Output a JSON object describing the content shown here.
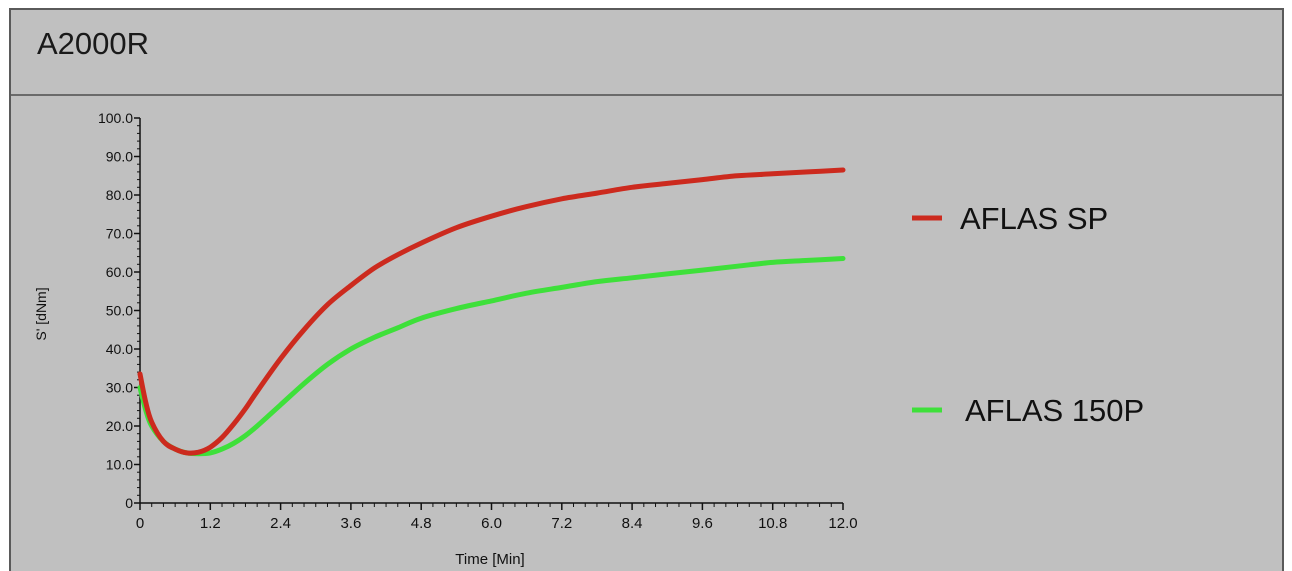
{
  "panel": {
    "title": "A2000R"
  },
  "chart_data": {
    "type": "line",
    "title": "A2000R",
    "xlabel": "Time [Min]",
    "ylabel": "S' [dNm]",
    "xlim": [
      0,
      12
    ],
    "ylim": [
      0,
      100
    ],
    "xticks": [
      "0",
      "1.2",
      "2.4",
      "3.6",
      "4.8",
      "6.0",
      "7.2",
      "8.4",
      "9.6",
      "10.8",
      "12.0"
    ],
    "yticks": [
      "0",
      "10.0",
      "20.0",
      "30.0",
      "40.0",
      "50.0",
      "60.0",
      "70.0",
      "80.0",
      "90.0",
      "100.0"
    ],
    "grid": false,
    "legend": "right",
    "series": [
      {
        "name": "AFLAS SP",
        "color": "#cc2a1e",
        "x": [
          0,
          0.1,
          0.2,
          0.4,
          0.6,
          0.8,
          1.0,
          1.2,
          1.4,
          1.6,
          1.8,
          2.0,
          2.4,
          2.8,
          3.2,
          3.6,
          4.0,
          4.4,
          4.8,
          5.4,
          6.0,
          6.6,
          7.2,
          7.8,
          8.4,
          9.0,
          9.6,
          10.2,
          10.8,
          11.4,
          12.0
        ],
        "y": [
          33.5,
          26,
          21,
          16,
          14,
          13,
          13.2,
          14.5,
          17,
          20.5,
          24.5,
          29,
          37.5,
          45,
          51.5,
          56.5,
          61,
          64.5,
          67.5,
          71.5,
          74.5,
          77,
          79,
          80.5,
          82,
          83,
          84,
          85,
          85.5,
          86,
          86.5
        ]
      },
      {
        "name": "AFLAS 150P",
        "color": "#3ee03a",
        "x": [
          0,
          0.1,
          0.2,
          0.4,
          0.6,
          0.8,
          1.0,
          1.2,
          1.4,
          1.6,
          1.8,
          2.0,
          2.4,
          2.8,
          3.2,
          3.6,
          4.0,
          4.4,
          4.8,
          5.4,
          6.0,
          6.6,
          7.2,
          7.8,
          8.4,
          9.0,
          9.6,
          10.2,
          10.8,
          11.4,
          12.0
        ],
        "y": [
          30,
          24,
          20,
          16,
          14,
          13,
          12.8,
          13,
          14,
          15.5,
          17.5,
          20,
          25.5,
          31,
          36,
          40,
          43,
          45.5,
          48,
          50.5,
          52.5,
          54.5,
          56,
          57.5,
          58.5,
          59.5,
          60.5,
          61.5,
          62.5,
          63,
          63.5
        ]
      }
    ]
  }
}
